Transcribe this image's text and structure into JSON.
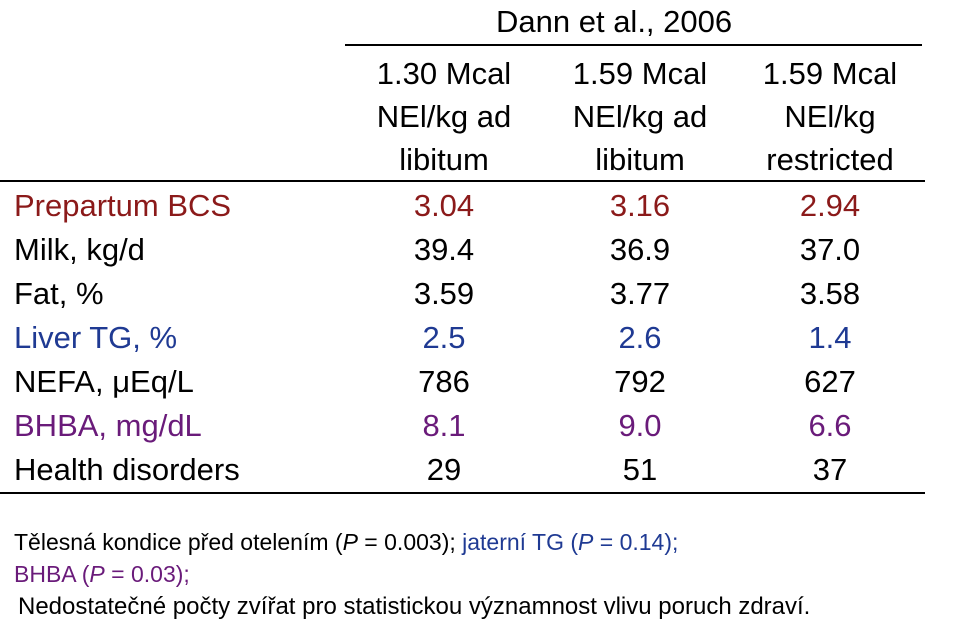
{
  "chart_data": {
    "type": "table",
    "title": "Dann et al., 2006",
    "columns": [
      "1.30 Mcal\nNEl/kg ad\nlibitum",
      "1.59 Mcal\nNEl/kg ad\nlibitum",
      "1.59 Mcal\nNEl/kg\nrestricted"
    ],
    "column_lines": [
      [
        "1.30 Mcal",
        "NEl/kg ad",
        "libitum"
      ],
      [
        "1.59 Mcal",
        "NEl/kg ad",
        "libitum"
      ],
      [
        "1.59 Mcal",
        "NEl/kg",
        "restricted"
      ]
    ],
    "rows": [
      {
        "label": "Prepartum BCS",
        "values": [
          "3.04",
          "3.16",
          "2.94"
        ],
        "color": "#8b1a1a"
      },
      {
        "label": "Milk, kg/d",
        "values": [
          "39.4",
          "36.9",
          "37.0"
        ],
        "color": "#000000"
      },
      {
        "label": "Fat, %",
        "values": [
          "3.59",
          "3.77",
          "3.58"
        ],
        "color": "#000000"
      },
      {
        "label": "Liver TG, %",
        "values": [
          "2.5",
          "2.6",
          "1.4"
        ],
        "color": "#1f3a93"
      },
      {
        "label": "NEFA, μEq/L",
        "values": [
          "786",
          "792",
          "627"
        ],
        "color": "#000000"
      },
      {
        "label": "BHBA, mg/dL",
        "values": [
          "8.1",
          "9.0",
          "6.6"
        ],
        "color": "#6a1b7a"
      },
      {
        "label": "Health disorders",
        "values": [
          "29",
          "51",
          "37"
        ],
        "color": "#000000"
      }
    ]
  },
  "footnotes": {
    "line1_part1": "Tělesná kondice před otelením (",
    "line1_p1": "P",
    "line1_part2": " = 0.003); ",
    "line1_part3": "jaterní TG (",
    "line1_p2": "P",
    "line1_part4": " = 0.14);",
    "line2_part1": "BHBA (",
    "line2_p": "P",
    "line2_part2": " = 0.03);",
    "line3": "Nedostatečné počty zvířat pro statistickou významnost vlivu poruch zdraví."
  }
}
